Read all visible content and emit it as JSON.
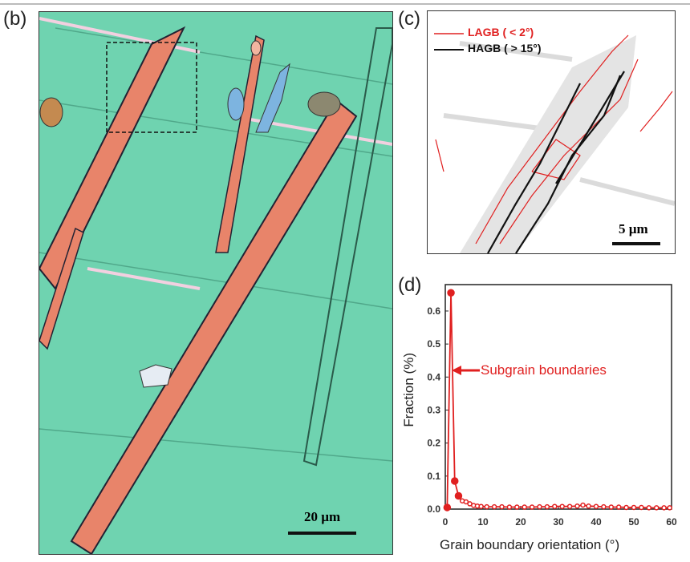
{
  "panels": {
    "b": "(b)",
    "c": "(c)",
    "d": "(d)"
  },
  "panel_b": {
    "scale_bar": "20 µm"
  },
  "panel_c": {
    "scale_bar": "5 µm",
    "legend": [
      {
        "label": "LAGB ( <   2°)",
        "color": "#e02020"
      },
      {
        "label": "HAGB ( > 15°)",
        "color": "#111111"
      }
    ]
  },
  "chart_data": {
    "type": "line",
    "title": "",
    "xlabel": "Grain boundary orientation (°)",
    "ylabel": "Fraction (%)",
    "xlim": [
      0,
      60
    ],
    "ylim": [
      0,
      0.68
    ],
    "xticks": [
      0,
      10,
      20,
      30,
      40,
      50,
      60
    ],
    "yticks": [
      0.0,
      0.1,
      0.2,
      0.3,
      0.4,
      0.5,
      0.6
    ],
    "annotation": "Subgrain boundaries",
    "color": "#e02020",
    "x": [
      0.5,
      1.5,
      2.5,
      3.5,
      4.5,
      5.5,
      6.5,
      7.5,
      8.5,
      9.5,
      11,
      13,
      15,
      17,
      19,
      21,
      23,
      25,
      27,
      29,
      31,
      33,
      35,
      36.5,
      38,
      40,
      42,
      44,
      46,
      48,
      50,
      52,
      54,
      56,
      58,
      59.5
    ],
    "y": [
      0.005,
      0.655,
      0.085,
      0.04,
      0.025,
      0.022,
      0.016,
      0.011,
      0.009,
      0.008,
      0.007,
      0.007,
      0.007,
      0.006,
      0.006,
      0.006,
      0.006,
      0.007,
      0.007,
      0.008,
      0.008,
      0.008,
      0.009,
      0.012,
      0.009,
      0.008,
      0.007,
      0.006,
      0.006,
      0.005,
      0.005,
      0.005,
      0.004,
      0.004,
      0.004,
      0.004
    ]
  }
}
